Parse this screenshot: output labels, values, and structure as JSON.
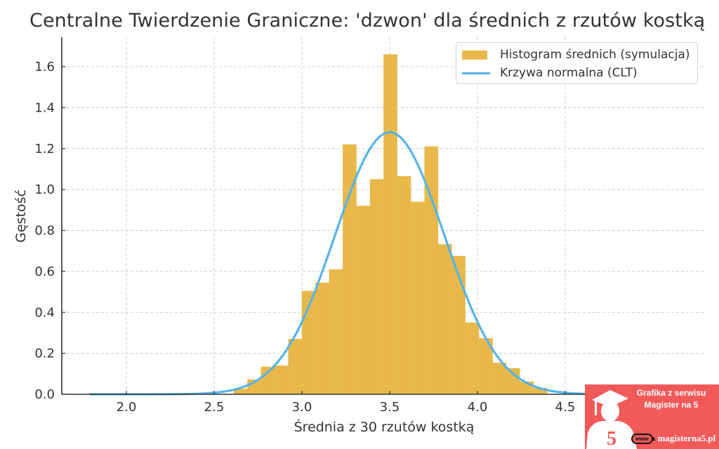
{
  "chart_data": {
    "type": "bar",
    "title": "Centralne Twierdzenie Graniczne: 'dzwon' dla średnich z rzutów kostką",
    "xlabel": "Średnia z 30 rzutów kostką",
    "ylabel": "Gęstość",
    "xlim": [
      1.632,
      5.3
    ],
    "ylim": [
      0,
      1.744
    ],
    "grid": true,
    "legend_position": "upper right",
    "xticks": [
      2.0,
      2.5,
      3.0,
      3.5,
      4.0,
      4.5
    ],
    "xtick_labels": [
      "2.0",
      "2.5",
      "3.0",
      "3.5",
      "4.0",
      "4.5"
    ],
    "yticks": [
      0.0,
      0.2,
      0.4,
      0.6,
      0.8,
      1.0,
      1.2,
      1.4,
      1.6
    ],
    "ytick_labels": [
      "0.0",
      "0.2",
      "0.4",
      "0.6",
      "0.8",
      "1.0",
      "1.2",
      "1.4",
      "1.6"
    ],
    "series": [
      {
        "name": "Histogram średnich (symulacja)",
        "kind": "histogram",
        "color": "#e8b84a",
        "bin_start": 2.612,
        "bin_width": 0.0776,
        "values": [
          0.027,
          0.072,
          0.134,
          0.14,
          0.27,
          0.504,
          0.545,
          0.61,
          1.22,
          0.92,
          1.05,
          1.66,
          1.065,
          0.94,
          1.21,
          0.733,
          0.675,
          0.35,
          0.274,
          0.154,
          0.127,
          0.062,
          0.031
        ]
      },
      {
        "name": "Krzywa normalna (CLT)",
        "kind": "normal_pdf",
        "color": "#56b4e9",
        "mean": 3.5,
        "sd": 0.3118,
        "x_range": [
          1.79,
          5.21
        ],
        "peak": 1.28
      }
    ]
  },
  "legend": {
    "items": [
      {
        "label": "Histogram średnich (symulacja)"
      },
      {
        "label": "Krzywa normalna (CLT)"
      }
    ]
  },
  "watermark": {
    "line1": "Grafika z serwisu",
    "line2": "Magister na 5",
    "www": "www",
    "url": "magisterna5.pl",
    "badge": "5",
    "color": "#f25a5a"
  }
}
